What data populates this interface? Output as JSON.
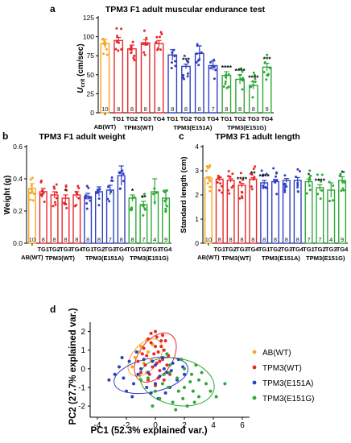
{
  "colors": {
    "ab": "#f5a623",
    "wt": "#e8272a",
    "e151a": "#2f3fc4",
    "e151g": "#2ea836",
    "axis": "#000000"
  },
  "panel_letters": [
    "a",
    "b",
    "c",
    "d"
  ],
  "chart_data": [
    {
      "type": "bar",
      "panel": "a",
      "title": "TPM3 F1 adult muscular endurance test",
      "ylabel_main": "U",
      "ylabel_sub": "crit",
      "ylabel_unit": " (cm/sec)",
      "ylim": [
        0,
        125
      ],
      "yticks": [
        0,
        25,
        50,
        75,
        100,
        125
      ],
      "categories": [
        "AB(WT)",
        "TG1",
        "TG2",
        "TG3",
        "TG4",
        "TG1",
        "TG2",
        "TG3",
        "TG4",
        "TG1",
        "TG2",
        "TG3",
        "TG4"
      ],
      "group_of": [
        "ab",
        "wt",
        "wt",
        "wt",
        "wt",
        "e151a",
        "e151a",
        "e151a",
        "e151a",
        "e151g",
        "e151g",
        "e151g",
        "e151g"
      ],
      "values": [
        91,
        95,
        84,
        92,
        91,
        76,
        61,
        78,
        62,
        49,
        44,
        36,
        60
      ],
      "errors": [
        6,
        4,
        5,
        4,
        4,
        7,
        3,
        10,
        6,
        5,
        6,
        5,
        5
      ],
      "n": [
        "10",
        "8",
        "8",
        "8",
        "8",
        "8",
        "8",
        "8",
        "7",
        "8",
        "8",
        "8",
        "9"
      ],
      "significance": [
        "",
        "",
        "",
        "",
        "",
        "",
        "***",
        "",
        "",
        "****",
        "****",
        "****",
        "***"
      ],
      "group_labels": [
        "TPM3(WT)",
        "TPM3(E151A)",
        "TPM3(E151G)"
      ]
    },
    {
      "type": "bar",
      "panel": "b",
      "title": "TPM3 F1 adult weight",
      "ylabel": "Weight (g)",
      "ylim": [
        0,
        0.6
      ],
      "yticks": [
        0.0,
        0.2,
        0.4,
        0.6
      ],
      "ytick_labels": [
        "0.0",
        "0.2",
        "0.4",
        "0.6"
      ],
      "categories": [
        "AB(WT)",
        "TG1",
        "TG2",
        "TG3",
        "TG4",
        "TG1",
        "TG2",
        "TG3",
        "TG4",
        "TG1",
        "TG2",
        "TG3",
        "TG4"
      ],
      "group_of": [
        "ab",
        "wt",
        "wt",
        "wt",
        "wt",
        "e151a",
        "e151a",
        "e151a",
        "e151a",
        "e151g",
        "e151g",
        "e151g",
        "e151g"
      ],
      "values": [
        0.34,
        0.32,
        0.3,
        0.28,
        0.3,
        0.29,
        0.32,
        0.33,
        0.42,
        0.28,
        0.24,
        0.32,
        0.28
      ],
      "errors": [
        0.03,
        0.02,
        0.02,
        0.02,
        0.02,
        0.02,
        0.03,
        0.03,
        0.06,
        0.02,
        0.02,
        0.08,
        0.05
      ],
      "n": [
        "10",
        "8",
        "8",
        "8",
        "8",
        "8",
        "8",
        "7",
        "8",
        "8",
        "7",
        "4",
        "9"
      ],
      "significance": [
        "",
        "",
        "",
        "*",
        "",
        "",
        "",
        "",
        "",
        "*",
        "**",
        "",
        ""
      ],
      "group_labels": [
        "TPM3(WT)",
        "TPM3(E151A)",
        "TPM3(E151G)"
      ]
    },
    {
      "type": "bar",
      "panel": "c",
      "title": "TPM3 F1 adult length",
      "ylabel": "Standard length (cm)",
      "ylim": [
        0,
        4
      ],
      "yticks": [
        0,
        1,
        2,
        3,
        4
      ],
      "categories": [
        "AB(WT)",
        "TG1",
        "TG2",
        "TG3",
        "TG4",
        "TG1",
        "TG2",
        "TG3",
        "TG4",
        "TG1",
        "TG2",
        "TG3",
        "TG4"
      ],
      "group_of": [
        "ab",
        "wt",
        "wt",
        "wt",
        "wt",
        "e151a",
        "e151a",
        "e151a",
        "e151a",
        "e151g",
        "e151g",
        "e151g",
        "e151g"
      ],
      "values": [
        2.7,
        2.65,
        2.6,
        2.4,
        2.65,
        2.5,
        2.55,
        2.6,
        2.6,
        2.55,
        2.3,
        2.2,
        2.6
      ],
      "errors": [
        0.05,
        0.07,
        0.07,
        0.08,
        0.06,
        0.1,
        0.08,
        0.08,
        0.12,
        0.1,
        0.12,
        0.3,
        0.15
      ],
      "n": [
        "10",
        "8",
        "8",
        "8",
        "8",
        "8",
        "8",
        "8",
        "8",
        "7",
        "7",
        "4",
        "9"
      ],
      "significance": [
        "",
        "",
        "",
        "****",
        "**",
        "****",
        "",
        "",
        "",
        "*",
        "****",
        "",
        "*"
      ],
      "group_labels": [
        "TPM3(WT)",
        "TPM3(E151A)",
        "TPM3(E151G)"
      ]
    },
    {
      "type": "scatter",
      "panel": "d",
      "xlabel": "PC1 (52.3% explained var.)",
      "ylabel": "PC2 (27.7% explained var.)",
      "xlim": [
        -4.5,
        6.5
      ],
      "ylim": [
        -2.6,
        2.5
      ],
      "xticks": [
        -4,
        -2,
        0,
        2,
        4,
        6
      ],
      "yticks": [
        -2,
        -1,
        0,
        1,
        2
      ],
      "legend_position": "right",
      "series": [
        {
          "name": "AB(WT)",
          "color_key": "ab",
          "points": [
            [
              -1.0,
              1.2
            ],
            [
              -0.6,
              1.5
            ],
            [
              -1.4,
              0.6
            ],
            [
              -0.5,
              0.9
            ],
            [
              -0.2,
              1.3
            ],
            [
              -0.8,
              0.3
            ],
            [
              -1.6,
              0.1
            ],
            [
              -0.3,
              0.5
            ],
            [
              -1.1,
              0.9
            ],
            [
              -0.6,
              -0.2
            ]
          ],
          "ellipse": {
            "cx": -0.7,
            "cy": 0.6,
            "rx": 1.5,
            "ry": 0.7,
            "angle": 50
          }
        },
        {
          "name": "TPM3(WT)",
          "color_key": "wt",
          "points": [
            [
              -0.3,
              1.9
            ],
            [
              0.1,
              1.7
            ],
            [
              0.4,
              1.5
            ],
            [
              0.0,
              1.2
            ],
            [
              -0.5,
              1.6
            ],
            [
              0.6,
              1.0
            ],
            [
              -0.1,
              0.8
            ],
            [
              0.3,
              0.4
            ],
            [
              -0.7,
              0.2
            ],
            [
              0.5,
              1.8
            ],
            [
              -1.0,
              -0.2
            ],
            [
              0.2,
              -0.5
            ],
            [
              -0.4,
              -0.3
            ],
            [
              0.8,
              0.2
            ],
            [
              0.0,
              2.0
            ],
            [
              -0.2,
              0.1
            ],
            [
              0.4,
              1.2
            ],
            [
              0.7,
              1.5
            ],
            [
              -0.6,
              0.7
            ],
            [
              1.0,
              -0.3
            ],
            [
              0.2,
              0.9
            ],
            [
              -0.8,
              1.1
            ],
            [
              0.6,
              -0.6
            ],
            [
              -1.2,
              0.4
            ],
            [
              0.3,
              -0.1
            ],
            [
              -0.3,
              1.4
            ],
            [
              0.9,
              0.7
            ],
            [
              0.1,
              0.3
            ],
            [
              -0.5,
              -0.6
            ],
            [
              0.5,
              0.5
            ],
            [
              0.0,
              -0.9
            ],
            [
              -0.9,
              0.8
            ]
          ],
          "ellipse": {
            "cx": 0.0,
            "cy": 0.6,
            "rx": 1.9,
            "ry": 0.9,
            "angle": 55
          }
        },
        {
          "name": "TPM3(E151A)",
          "color_key": "e151a",
          "points": [
            [
              -2.8,
              -0.3
            ],
            [
              -2.2,
              -0.5
            ],
            [
              -1.8,
              0.4
            ],
            [
              -1.5,
              -0.8
            ],
            [
              -1.0,
              0.0
            ],
            [
              -0.6,
              -1.0
            ],
            [
              0.0,
              0.2
            ],
            [
              0.3,
              -0.4
            ],
            [
              0.8,
              -0.2
            ],
            [
              1.2,
              0.3
            ],
            [
              -2.0,
              -1.2
            ],
            [
              -0.3,
              -1.3
            ],
            [
              1.5,
              -0.6
            ],
            [
              0.5,
              0.6
            ],
            [
              -1.2,
              -0.3
            ],
            [
              -2.5,
              0.1
            ],
            [
              0.0,
              -0.8
            ],
            [
              1.0,
              -1.0
            ],
            [
              -0.8,
              0.5
            ],
            [
              -1.6,
              -1.5
            ],
            [
              0.6,
              0.0
            ],
            [
              2.0,
              -0.3
            ],
            [
              -0.5,
              -0.2
            ],
            [
              1.6,
              0.5
            ],
            [
              -3.2,
              -0.6
            ],
            [
              0.2,
              -1.6
            ],
            [
              -1.3,
              0.9
            ],
            [
              1.1,
              -0.1
            ],
            [
              -0.2,
              0.4
            ],
            [
              0.7,
              -1.3
            ],
            [
              -2.3,
              0.6
            ],
            [
              1.9,
              0.1
            ]
          ],
          "ellipse": {
            "cx": -0.3,
            "cy": -0.35,
            "rx": 2.6,
            "ry": 0.9,
            "angle": 12
          }
        },
        {
          "name": "TPM3(E151G)",
          "color_key": "e151g",
          "points": [
            [
              1.0,
              0.2
            ],
            [
              1.5,
              -0.5
            ],
            [
              2.0,
              -1.0
            ],
            [
              2.5,
              -0.3
            ],
            [
              3.0,
              -1.5
            ],
            [
              0.5,
              -0.8
            ],
            [
              1.2,
              -1.8
            ],
            [
              2.8,
              0.2
            ],
            [
              3.5,
              -0.8
            ],
            [
              0.8,
              0.8
            ],
            [
              1.8,
              0.5
            ],
            [
              4.8,
              -0.8
            ],
            [
              2.2,
              -2.0
            ],
            [
              0.0,
              -1.2
            ],
            [
              1.6,
              -1.2
            ],
            [
              3.2,
              -0.2
            ],
            [
              -0.5,
              -0.5
            ],
            [
              2.6,
              -1.2
            ],
            [
              1.0,
              -0.2
            ],
            [
              0.3,
              -1.6
            ],
            [
              2.0,
              0.0
            ],
            [
              3.8,
              -1.2
            ],
            [
              -1.0,
              -0.6
            ],
            [
              1.4,
              -2.2
            ],
            [
              2.4,
              -0.7
            ],
            [
              0.6,
              -0.3
            ],
            [
              4.2,
              -1.5
            ],
            [
              1.9,
              -1.6
            ],
            [
              0.9,
              -1.0
            ],
            [
              3.0,
              -0.6
            ],
            [
              -0.2,
              -2.0
            ],
            [
              2.7,
              -1.8
            ]
          ],
          "ellipse": {
            "cx": 1.5,
            "cy": -0.7,
            "rx": 2.6,
            "ry": 1.25,
            "angle": -12
          }
        }
      ]
    }
  ]
}
